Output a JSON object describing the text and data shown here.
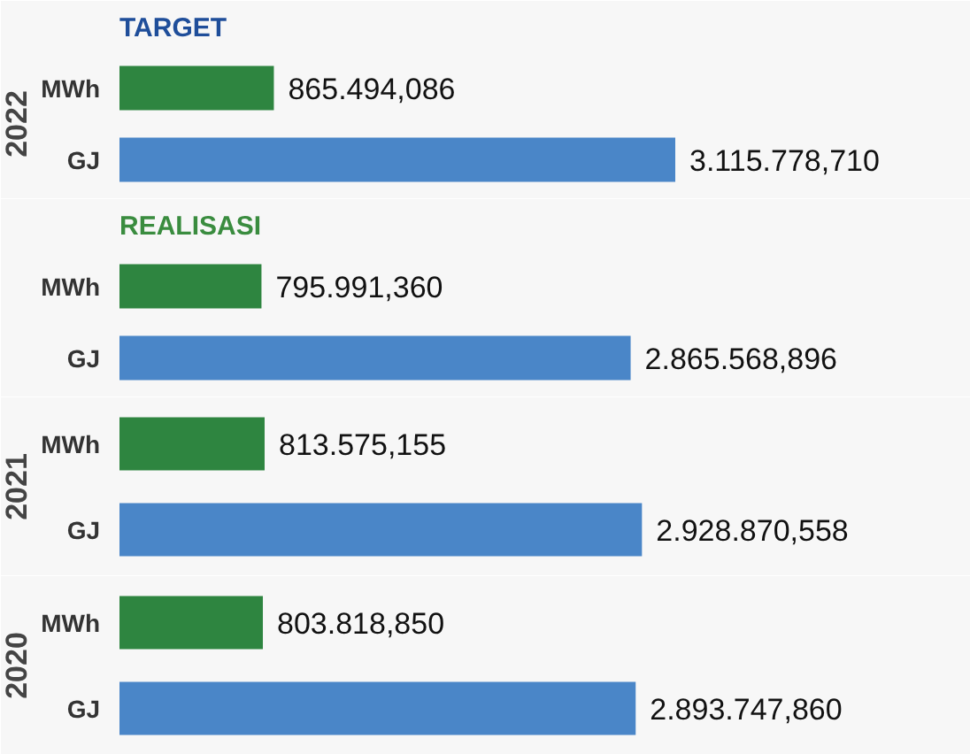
{
  "chart_data": [
    {
      "type": "bar",
      "orientation": "horizontal",
      "title": "TARGET",
      "ylabel": "2022",
      "categories": [
        "MWh",
        "GJ"
      ],
      "values": [
        865494.086,
        3115778.71
      ],
      "value_labels": [
        "865.494,086",
        "3.115.778,710"
      ],
      "colors": [
        "#2e8540",
        "#4a86c8"
      ],
      "tick_labels": "y"
    },
    {
      "type": "bar",
      "orientation": "horizontal",
      "title": "REALISASI",
      "categories": [
        "MWh",
        "GJ"
      ],
      "values": [
        795991.36,
        2865568.896
      ],
      "value_labels": [
        "795.991,360",
        "2.865.568,896"
      ],
      "colors": [
        "#2e8540",
        "#4a86c8"
      ],
      "tick_labels": "y"
    },
    {
      "type": "bar",
      "orientation": "horizontal",
      "ylabel": "2021",
      "categories": [
        "MWh",
        "GJ"
      ],
      "values": [
        813575.155,
        2928870.558
      ],
      "value_labels": [
        "813.575,155",
        "2.928.870,558"
      ],
      "colors": [
        "#2e8540",
        "#4a86c8"
      ],
      "tick_labels": "y"
    },
    {
      "type": "bar",
      "orientation": "horizontal",
      "ylabel": "2020",
      "categories": [
        "MWh",
        "GJ"
      ],
      "values": [
        803818.85,
        2893747.86
      ],
      "value_labels": [
        "803.818,850",
        "2.893.747,860"
      ],
      "colors": [
        "#2e8540",
        "#4a86c8"
      ],
      "tick_labels": "y"
    }
  ]
}
